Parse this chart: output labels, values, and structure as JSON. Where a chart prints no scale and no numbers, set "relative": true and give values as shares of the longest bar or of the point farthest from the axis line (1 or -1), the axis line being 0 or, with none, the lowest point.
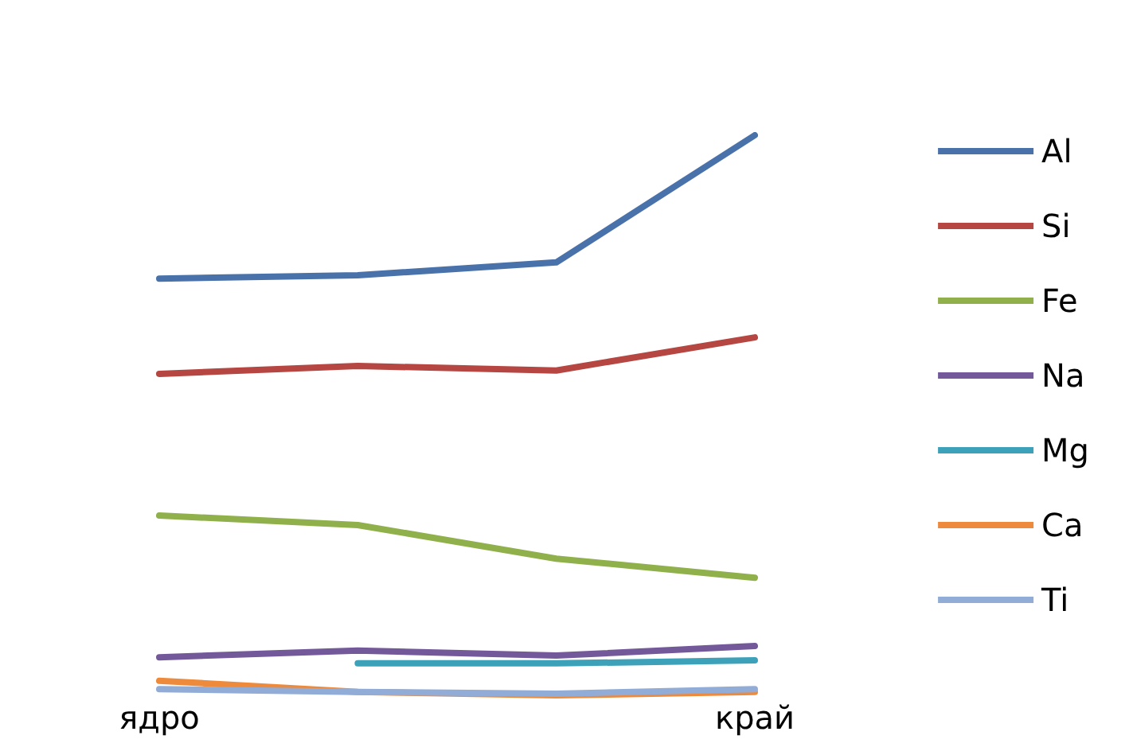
{
  "chart_data": {
    "type": "line",
    "relative": true,
    "categories": [
      "ядро",
      null,
      null,
      "край"
    ],
    "legend": "right",
    "marker": "none",
    "line_style": "solid",
    "grid": false,
    "series": [
      {
        "name": "Al",
        "color": "#4a72aa",
        "values": [
          0.744,
          0.75,
          0.773,
          1
        ]
      },
      {
        "name": "Si",
        "color": "#b54641",
        "values": [
          0.574,
          0.588,
          0.58,
          0.639
        ]
      },
      {
        "name": "Fe",
        "color": "#8fb04a",
        "values": [
          0.321,
          0.304,
          0.244,
          0.21
        ]
      },
      {
        "name": "Na",
        "color": "#74599a",
        "values": [
          0.068,
          0.08,
          0.071,
          0.088
        ]
      },
      {
        "name": "Mg",
        "color": "#3ea1ba",
        "values": [
          null,
          0.057,
          0.057,
          0.0625
        ]
      },
      {
        "name": "Ca",
        "color": "#ee8a3c",
        "values": [
          0.026,
          0.006,
          0,
          0.006
        ]
      },
      {
        "name": "Ti",
        "color": "#91acd6",
        "values": [
          0.011,
          0.006,
          0.003,
          0.011
        ]
      }
    ]
  }
}
